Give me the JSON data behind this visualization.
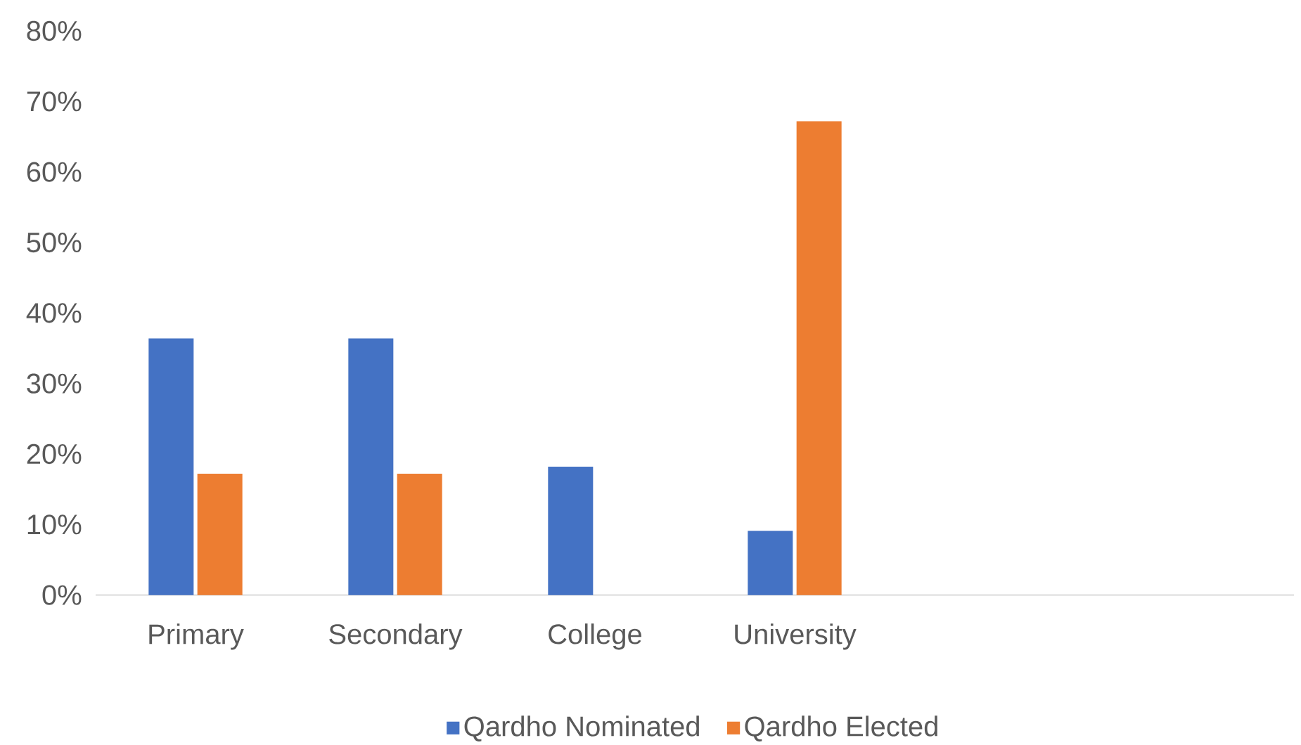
{
  "chart_data": {
    "type": "bar",
    "categories": [
      "Primary",
      "Secondary",
      "College",
      "University",
      null,
      null
    ],
    "series": [
      {
        "name": "Qardho Nominated",
        "color": "#4472c4",
        "values": [
          36.4,
          36.4,
          18.2,
          9.1,
          null,
          null
        ]
      },
      {
        "name": "Qardho Elected",
        "color": "#ed7d31",
        "values": [
          17.2,
          17.2,
          0,
          67.2,
          null,
          null
        ]
      }
    ],
    "ylim": [
      0,
      80
    ],
    "yticks": [
      {
        "value": 0,
        "label": "0%"
      },
      {
        "value": 10,
        "label": "10%"
      },
      {
        "value": 20,
        "label": "20%"
      },
      {
        "value": 30,
        "label": "30%"
      },
      {
        "value": 40,
        "label": "40%"
      },
      {
        "value": 50,
        "label": "50%"
      },
      {
        "value": 60,
        "label": "60%"
      },
      {
        "value": 70,
        "label": "70%"
      },
      {
        "value": 80,
        "label": "80%"
      }
    ],
    "grid": false,
    "legend": "bottom"
  }
}
